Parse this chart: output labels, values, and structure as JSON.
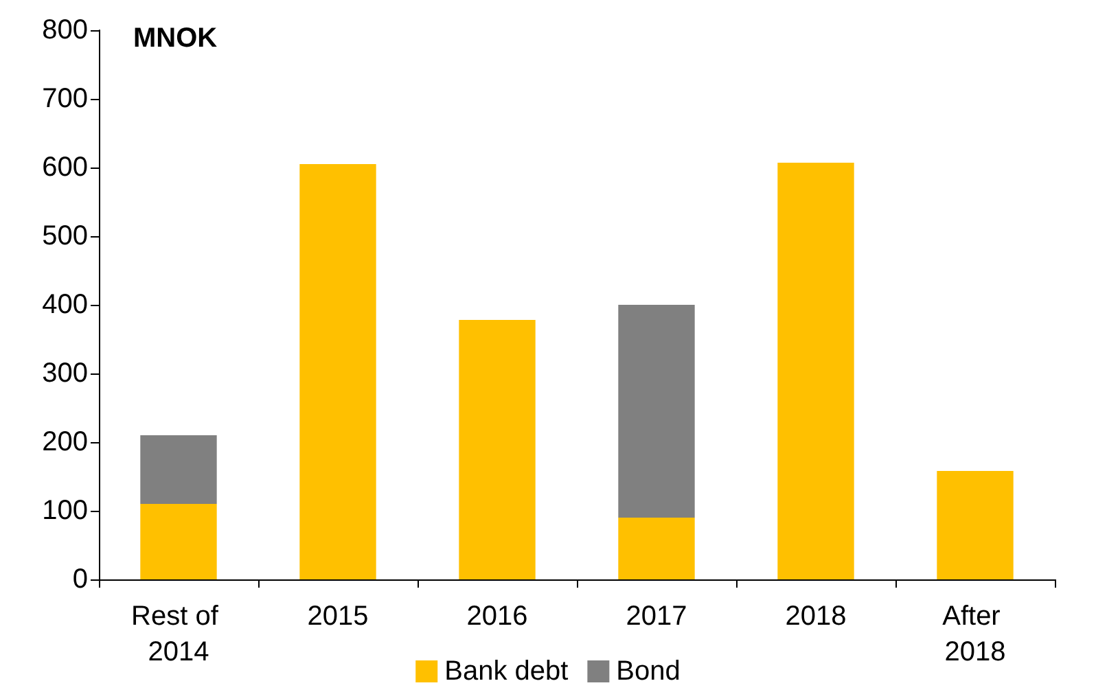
{
  "chart_data": {
    "type": "bar",
    "ylabel": "MNOK",
    "categories": [
      "Rest of 2014",
      "2015",
      "2016",
      "2017",
      "2018",
      "After 2018"
    ],
    "stacked": true,
    "series": [
      {
        "name": "Bank debt",
        "color": "#ffc000",
        "values": [
          110,
          605,
          378,
          90,
          607,
          158
        ]
      },
      {
        "name": "Bond",
        "color": "#808080",
        "values": [
          100,
          null,
          null,
          310,
          null,
          null
        ]
      }
    ],
    "ylim": [
      0,
      800
    ],
    "yticks": [
      0,
      100,
      200,
      300,
      400,
      500,
      600,
      700,
      800
    ],
    "grid": false,
    "legend": "bottom"
  }
}
